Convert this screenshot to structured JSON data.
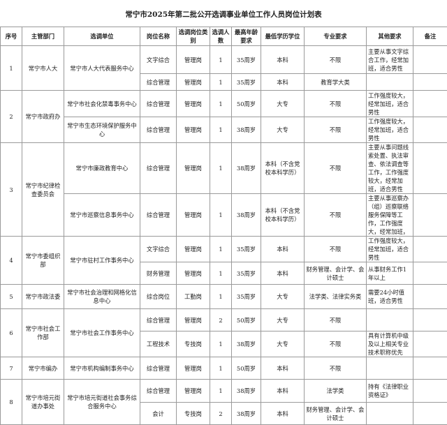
{
  "title": "常宁市2025年第二批公开选调事业单位工作人员岗位计划表",
  "headers": [
    "序号",
    "主管部门",
    "选调单位",
    "岗位名称",
    "选调岗位类别",
    "选调人数",
    "最高年龄要求",
    "最低学历学位",
    "专业要求",
    "其他要求",
    "备注"
  ],
  "rows": [
    {
      "no": "1",
      "dept": "常宁市人大",
      "unit": "常宁市人大代表服务中心",
      "span_no": 2,
      "span_unit": 2,
      "post": "文字综合",
      "type": "管理岗",
      "count": "1",
      "age": "35周岁",
      "edu": "本科",
      "major": "不限",
      "other": "主要从事文字综合工作，经常加班，适合男性",
      "note": ""
    },
    {
      "post": "综合管理",
      "type": "管理岗",
      "count": "1",
      "age": "35周岁",
      "edu": "本科",
      "major": "教育学大类",
      "other": "",
      "note": ""
    },
    {
      "no": "2",
      "dept": "常宁市政府办",
      "span_no": 2,
      "unit": "常宁市社会化禁毒事务中心",
      "post": "综合管理",
      "type": "管理岗",
      "count": "1",
      "age": "50周岁",
      "edu": "大专",
      "major": "不限",
      "other": "工作强度较大，经常加班，适合男性",
      "note": ""
    },
    {
      "unit": "常宁市生态环境保护服务中心",
      "post": "综合管理",
      "type": "管理岗",
      "count": "1",
      "age": "38周岁",
      "edu": "大专",
      "major": "不限",
      "other": "工作强度较大，经常加班，适合男性",
      "note": ""
    },
    {
      "no": "3",
      "dept": "常宁市纪律检查委员会",
      "span_no": 2,
      "unit": "常宁市廉政教育中心",
      "post": "综合管理",
      "type": "管理岗",
      "count": "1",
      "age": "38周岁",
      "edu": "本科（不含党校本科学历）",
      "major": "不限",
      "other": "主要从事问题线索处置、执法审查、依法调查等工作，工作强度较大，经常加班，适合男性",
      "note": ""
    },
    {
      "unit": "常宁市巡察信息事务中心",
      "post": "综合管理",
      "type": "管理岗",
      "count": "1",
      "age": "38周岁",
      "edu": "本科（不含党校本科学历）",
      "major": "不限",
      "other": "主要从事巡察办（组）巡察联络服务保障等工作，工作强度大，经常加班，",
      "note": ""
    },
    {
      "no": "4",
      "dept": "常宁市委组织部",
      "unit": "常宁市驻村工作事务中心",
      "span_no": 2,
      "span_unit": 2,
      "post": "文字综合",
      "type": "管理岗",
      "count": "1",
      "age": "35周岁",
      "edu": "本科",
      "major": "不限",
      "other": "工作强度较大，经常加班，适合男性",
      "note": ""
    },
    {
      "post": "财务管理",
      "type": "管理岗",
      "count": "1",
      "age": "35周岁",
      "edu": "本科",
      "major": "财务管理、会计学、会计硕士",
      "other": "从事财务工作1年以上",
      "note": ""
    },
    {
      "no": "5",
      "dept": "常宁市政法委",
      "unit": "常宁市社会治理和网格化信息中心",
      "post": "综合岗位",
      "type": "工勤岗",
      "count": "1",
      "age": "35周岁",
      "edu": "大专",
      "major": "法学类、法律实务类",
      "other": "需要24小时值班，适合男性",
      "note": ""
    },
    {
      "no": "6",
      "dept": "常宁市社会工作部",
      "unit": "常宁市社会工作事务中心",
      "span_no": 2,
      "span_unit": 2,
      "post": "综合管理",
      "type": "管理岗",
      "count": "2",
      "age": "50周岁",
      "edu": "大专",
      "major": "不限",
      "other": "",
      "note": ""
    },
    {
      "post": "工程技术",
      "type": "专技岗",
      "count": "1",
      "age": "38周岁",
      "edu": "大专",
      "major": "不限",
      "other": "具有计算机中级及以上相关专业技术职称优先",
      "note": ""
    },
    {
      "no": "7",
      "dept": "常宁市编办",
      "unit": "常宁市机构编制事务中心",
      "post": "综合管理",
      "type": "管理岗",
      "count": "1",
      "age": "50周岁",
      "edu": "本科",
      "major": "不限",
      "other": "",
      "note": ""
    },
    {
      "no": "8",
      "dept": "常宁市培元街道办事处",
      "unit": "常宁市培元街道社会事务综合服务中心",
      "span_no": 2,
      "span_unit": 2,
      "post": "综合管理",
      "type": "管理岗",
      "count": "1",
      "age": "38周岁",
      "edu": "本科",
      "major": "法学类",
      "other": "持有《法律职业资格证》",
      "note": ""
    },
    {
      "post": "会计",
      "type": "专技岗",
      "count": "2",
      "age": "38周岁",
      "edu": "本科",
      "major": "财务管理、会计学、会计硕士",
      "other": "",
      "note": ""
    }
  ]
}
